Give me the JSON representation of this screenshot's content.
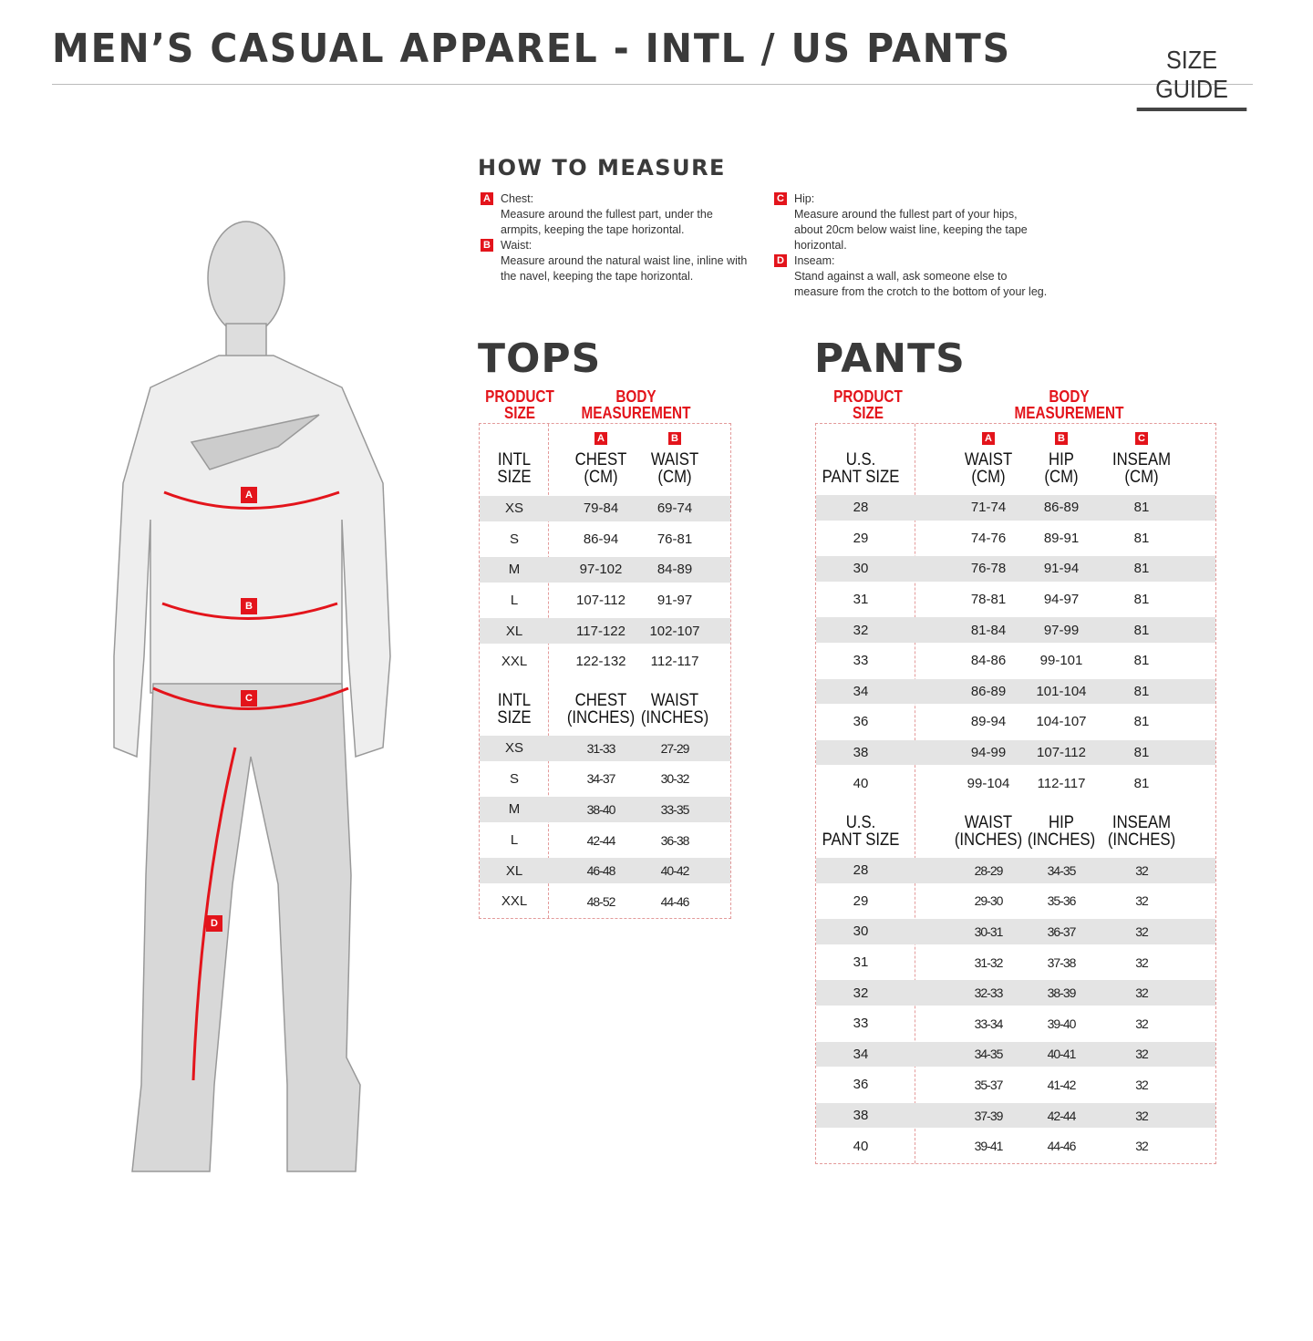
{
  "header": {
    "title": "MEN’S CASUAL APPAREL - INTL / US PANTS",
    "guide": "SIZE GUIDE"
  },
  "accent": "#e3141b",
  "figure": {
    "labels": [
      "A",
      "B",
      "C",
      "D"
    ]
  },
  "how_to_measure": {
    "title": "HOW TO MEASURE",
    "items": [
      {
        "letter": "A",
        "name": "Chest:",
        "text": "Measure around the fullest part, under the armpits, keeping the tape horizontal."
      },
      {
        "letter": "B",
        "name": "Waist:",
        "text": "Measure around the natural waist line, inline with the navel, keeping the tape horizontal."
      },
      {
        "letter": "C",
        "name": "Hip:",
        "text": "Measure around the fullest part of your hips, about 20cm below waist line, keeping the tape horizontal."
      },
      {
        "letter": "D",
        "name": "Inseam:",
        "text": "Stand against a wall, ask someone else to measure from the crotch to the bottom of your leg."
      }
    ]
  },
  "tops": {
    "title": "TOPS",
    "product_size": "PRODUCT\nSIZE",
    "body_measurement": "BODY\nMEASUREMENT",
    "cm": {
      "letters": [
        "A",
        "B"
      ],
      "headers": [
        "INTL\nSIZE",
        "CHEST\n(CM)",
        "WAIST\n(CM)"
      ],
      "rows": [
        [
          "XS",
          "79-84",
          "69-74"
        ],
        [
          "S",
          "86-94",
          "76-81"
        ],
        [
          "M",
          "97-102",
          "84-89"
        ],
        [
          "L",
          "107-112",
          "91-97"
        ],
        [
          "XL",
          "117-122",
          "102-107"
        ],
        [
          "XXL",
          "122-132",
          "112-117"
        ]
      ]
    },
    "inches": {
      "headers": [
        "INTL\nSIZE",
        "CHEST\n(INCHES)",
        "WAIST\n(INCHES)"
      ],
      "rows": [
        [
          "XS",
          "31-33",
          "27-29"
        ],
        [
          "S",
          "34-37",
          "30-32"
        ],
        [
          "M",
          "38-40",
          "33-35"
        ],
        [
          "L",
          "42-44",
          "36-38"
        ],
        [
          "XL",
          "46-48",
          "40-42"
        ],
        [
          "XXL",
          "48-52",
          "44-46"
        ]
      ]
    }
  },
  "pants": {
    "title": "PANTS",
    "product_size": "PRODUCT\nSIZE",
    "body_measurement": "BODY\nMEASUREMENT",
    "cm": {
      "letters": [
        "A",
        "B",
        "C"
      ],
      "headers": [
        "U.S.\nPANT SIZE",
        "WAIST\n(CM)",
        "HIP\n(CM)",
        "INSEAM\n(CM)"
      ],
      "rows": [
        [
          "28",
          "71-74",
          "86-89",
          "81"
        ],
        [
          "29",
          "74-76",
          "89-91",
          "81"
        ],
        [
          "30",
          "76-78",
          "91-94",
          "81"
        ],
        [
          "31",
          "78-81",
          "94-97",
          "81"
        ],
        [
          "32",
          "81-84",
          "97-99",
          "81"
        ],
        [
          "33",
          "84-86",
          "99-101",
          "81"
        ],
        [
          "34",
          "86-89",
          "101-104",
          "81"
        ],
        [
          "36",
          "89-94",
          "104-107",
          "81"
        ],
        [
          "38",
          "94-99",
          "107-112",
          "81"
        ],
        [
          "40",
          "99-104",
          "112-117",
          "81"
        ]
      ]
    },
    "inches": {
      "headers": [
        "U.S.\nPANT SIZE",
        "WAIST\n(INCHES)",
        "HIP\n(INCHES)",
        "INSEAM\n(INCHES)"
      ],
      "rows": [
        [
          "28",
          "28-29",
          "34-35",
          "32"
        ],
        [
          "29",
          "29-30",
          "35-36",
          "32"
        ],
        [
          "30",
          "30-31",
          "36-37",
          "32"
        ],
        [
          "31",
          "31-32",
          "37-38",
          "32"
        ],
        [
          "32",
          "32-33",
          "38-39",
          "32"
        ],
        [
          "33",
          "33-34",
          "39-40",
          "32"
        ],
        [
          "34",
          "34-35",
          "40-41",
          "32"
        ],
        [
          "36",
          "35-37",
          "41-42",
          "32"
        ],
        [
          "38",
          "37-39",
          "42-44",
          "32"
        ],
        [
          "40",
          "39-41",
          "44-46",
          "32"
        ]
      ]
    }
  }
}
